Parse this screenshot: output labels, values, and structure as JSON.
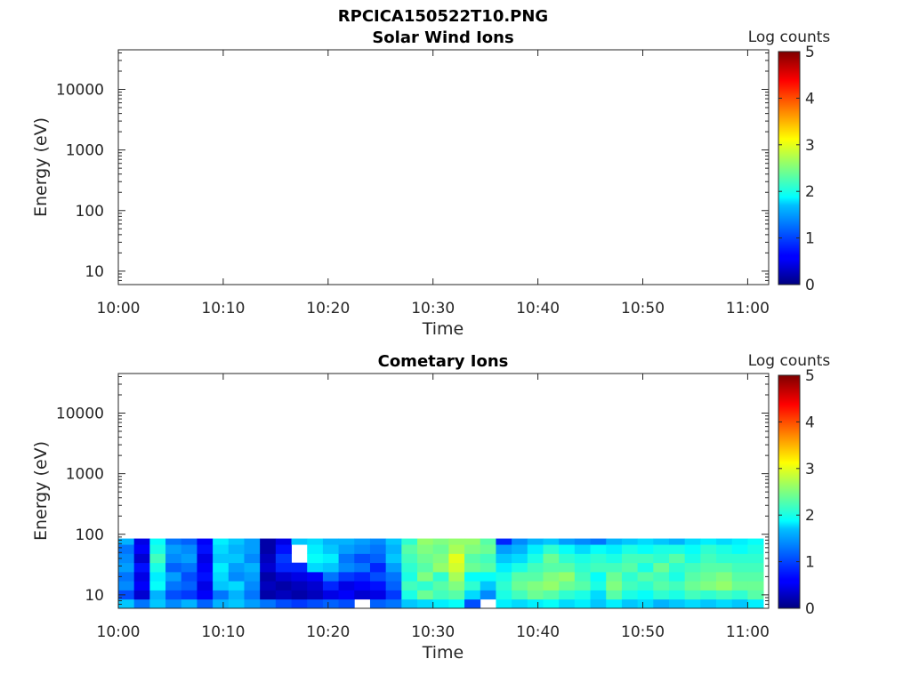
{
  "figure_title": "RPCICA150522T10.PNG",
  "chart_data": [
    {
      "type": "heatmap",
      "title": "Solar Wind Ions",
      "xlabel": "Time",
      "ylabel": "Energy (eV)",
      "x_ticks": [
        "10:00",
        "10:10",
        "10:20",
        "10:30",
        "10:40",
        "10:50",
        "11:00"
      ],
      "y_ticks": [
        "10",
        "100",
        "1000",
        "10000"
      ],
      "y_scale": "log",
      "ylim": [
        6,
        45000
      ],
      "xlim": [
        "10:00",
        "11:02"
      ],
      "colorbar": {
        "label": "Log counts",
        "range": [
          0,
          5
        ],
        "ticks": [
          "0",
          "1",
          "2",
          "3",
          "4",
          "5"
        ],
        "colormap": "jet"
      },
      "data": "empty"
    },
    {
      "type": "heatmap",
      "title": "Cometary Ions",
      "xlabel": "Time",
      "ylabel": "Energy (eV)",
      "x_ticks": [
        "10:00",
        "10:10",
        "10:20",
        "10:30",
        "10:40",
        "10:50",
        "11:00"
      ],
      "y_ticks": [
        "10",
        "100",
        "1000",
        "10000"
      ],
      "y_scale": "log",
      "ylim": [
        6,
        45000
      ],
      "xlim": [
        "10:00",
        "11:02"
      ],
      "colorbar": {
        "label": "Log counts",
        "range": [
          0,
          5
        ],
        "ticks": [
          "0",
          "1",
          "2",
          "3",
          "4",
          "5"
        ],
        "colormap": "jet"
      },
      "energy_bands_eV": [
        [
          6,
          8.5
        ],
        [
          8.5,
          12
        ],
        [
          12,
          17
        ],
        [
          17,
          24
        ],
        [
          24,
          34
        ],
        [
          34,
          48
        ],
        [
          48,
          68
        ],
        [
          68,
          85
        ]
      ],
      "column_start_minutes": [
        0,
        1.5,
        3,
        4.5,
        6,
        7.5,
        9,
        10.5,
        12,
        13.5,
        15,
        16.5,
        18,
        19.5,
        21,
        22.5,
        24,
        25.5,
        27,
        28.5,
        30,
        31.5,
        33,
        34.5,
        36,
        37.5,
        39,
        40.5,
        42,
        43.5,
        45,
        46.5,
        48,
        49.5,
        51,
        52.5,
        54,
        55.5,
        57,
        58.5,
        60
      ],
      "column_width_minutes": 1.5,
      "log_counts_bottom_to_top": [
        [
          1.6,
          1.0,
          1.3,
          1.2,
          1.4,
          1.3,
          1.2,
          1.5
        ],
        [
          1.2,
          0.4,
          0.6,
          0.5,
          0.7,
          0.4,
          0.6,
          0.5
        ],
        [
          1.6,
          1.5,
          1.9,
          1.8,
          2.0,
          2.2,
          2.0,
          1.9
        ],
        [
          1.3,
          1.0,
          1.2,
          1.4,
          1.1,
          1.3,
          1.4,
          1.2
        ],
        [
          1.5,
          0.9,
          1.1,
          1.0,
          1.2,
          1.4,
          1.3,
          1.1
        ],
        [
          1.1,
          0.6,
          0.5,
          0.7,
          0.6,
          0.5,
          0.7,
          0.6
        ],
        [
          1.5,
          1.2,
          1.6,
          1.7,
          1.8,
          1.6,
          1.7,
          1.8
        ],
        [
          1.6,
          1.5,
          1.7,
          1.3,
          1.4,
          1.6,
          1.5,
          1.6
        ],
        [
          1.4,
          1.2,
          1.3,
          1.4,
          1.5,
          1.3,
          1.4,
          1.4
        ],
        [
          1.2,
          0.2,
          0.3,
          0.2,
          0.4,
          0.3,
          0.2,
          0.2
        ],
        [
          1.0,
          0.3,
          0.2,
          0.4,
          0.8,
          0.9,
          0.7,
          0.5
        ],
        [
          0.9,
          0.2,
          0.3,
          0.5,
          0.8,
          null,
          null,
          1.6
        ],
        [
          1.0,
          0.3,
          0.4,
          0.6,
          1.7,
          1.9,
          1.8,
          1.7
        ],
        [
          1.1,
          0.5,
          0.8,
          1.2,
          1.6,
          1.8,
          1.6,
          1.5
        ],
        [
          1.0,
          0.6,
          0.5,
          0.9,
          1.3,
          1.2,
          1.4,
          1.5
        ],
        [
          null,
          0.4,
          0.6,
          0.8,
          1.2,
          1.0,
          1.3,
          1.4
        ],
        [
          1.1,
          0.5,
          0.7,
          1.0,
          0.8,
          1.1,
          1.2,
          1.3
        ],
        [
          1.2,
          0.9,
          1.1,
          1.2,
          1.4,
          1.6,
          1.5,
          1.6
        ],
        [
          1.6,
          2.0,
          2.2,
          2.0,
          2.1,
          2.2,
          2.3,
          2.1
        ],
        [
          1.7,
          2.4,
          2.1,
          2.5,
          2.3,
          2.4,
          2.5,
          2.6
        ],
        [
          1.8,
          2.2,
          2.3,
          2.1,
          2.6,
          2.5,
          2.4,
          2.5
        ],
        [
          1.9,
          2.3,
          2.5,
          2.7,
          2.9,
          3.0,
          2.7,
          2.6
        ],
        [
          1.0,
          1.7,
          2.1,
          1.9,
          2.4,
          2.3,
          2.5,
          2.6
        ],
        [
          null,
          1.3,
          1.6,
          1.9,
          2.3,
          2.2,
          2.4,
          2.3
        ],
        [
          1.8,
          2.0,
          2.1,
          2.0,
          1.8,
          1.6,
          1.4,
          0.8
        ],
        [
          1.7,
          2.2,
          2.4,
          2.3,
          2.0,
          1.7,
          1.5,
          1.3
        ],
        [
          1.8,
          2.4,
          2.5,
          2.3,
          2.2,
          2.0,
          1.8,
          1.5
        ],
        [
          1.9,
          2.3,
          2.6,
          2.5,
          2.3,
          2.4,
          2.1,
          1.6
        ],
        [
          1.7,
          2.1,
          2.4,
          2.6,
          2.3,
          2.1,
          1.9,
          1.4
        ],
        [
          1.8,
          2.0,
          2.3,
          2.2,
          2.1,
          2.0,
          1.7,
          1.3
        ],
        [
          1.6,
          1.7,
          2.0,
          1.9,
          2.2,
          2.1,
          1.9,
          1.2
        ],
        [
          1.8,
          2.3,
          2.5,
          2.4,
          2.2,
          2.0,
          1.8,
          1.5
        ],
        [
          1.6,
          2.0,
          2.2,
          2.1,
          2.3,
          2.2,
          2.0,
          1.6
        ],
        [
          1.7,
          1.9,
          2.1,
          2.3,
          2.0,
          2.2,
          1.9,
          1.7
        ],
        [
          1.5,
          2.1,
          2.3,
          2.2,
          2.4,
          2.1,
          2.0,
          1.6
        ],
        [
          1.6,
          2.0,
          2.2,
          2.0,
          2.1,
          2.3,
          2.0,
          1.5
        ],
        [
          1.7,
          2.2,
          2.4,
          2.3,
          2.2,
          2.0,
          1.9,
          1.7
        ],
        [
          1.6,
          2.1,
          2.5,
          2.4,
          2.3,
          2.2,
          2.1,
          1.8
        ],
        [
          1.7,
          2.2,
          2.6,
          2.5,
          2.3,
          2.1,
          2.0,
          1.7
        ],
        [
          1.6,
          2.1,
          2.4,
          2.3,
          2.2,
          2.1,
          1.9,
          1.8
        ],
        [
          1.8,
          2.3,
          2.4,
          2.3,
          2.2,
          2.1,
          2.0,
          1.9
        ]
      ]
    }
  ]
}
